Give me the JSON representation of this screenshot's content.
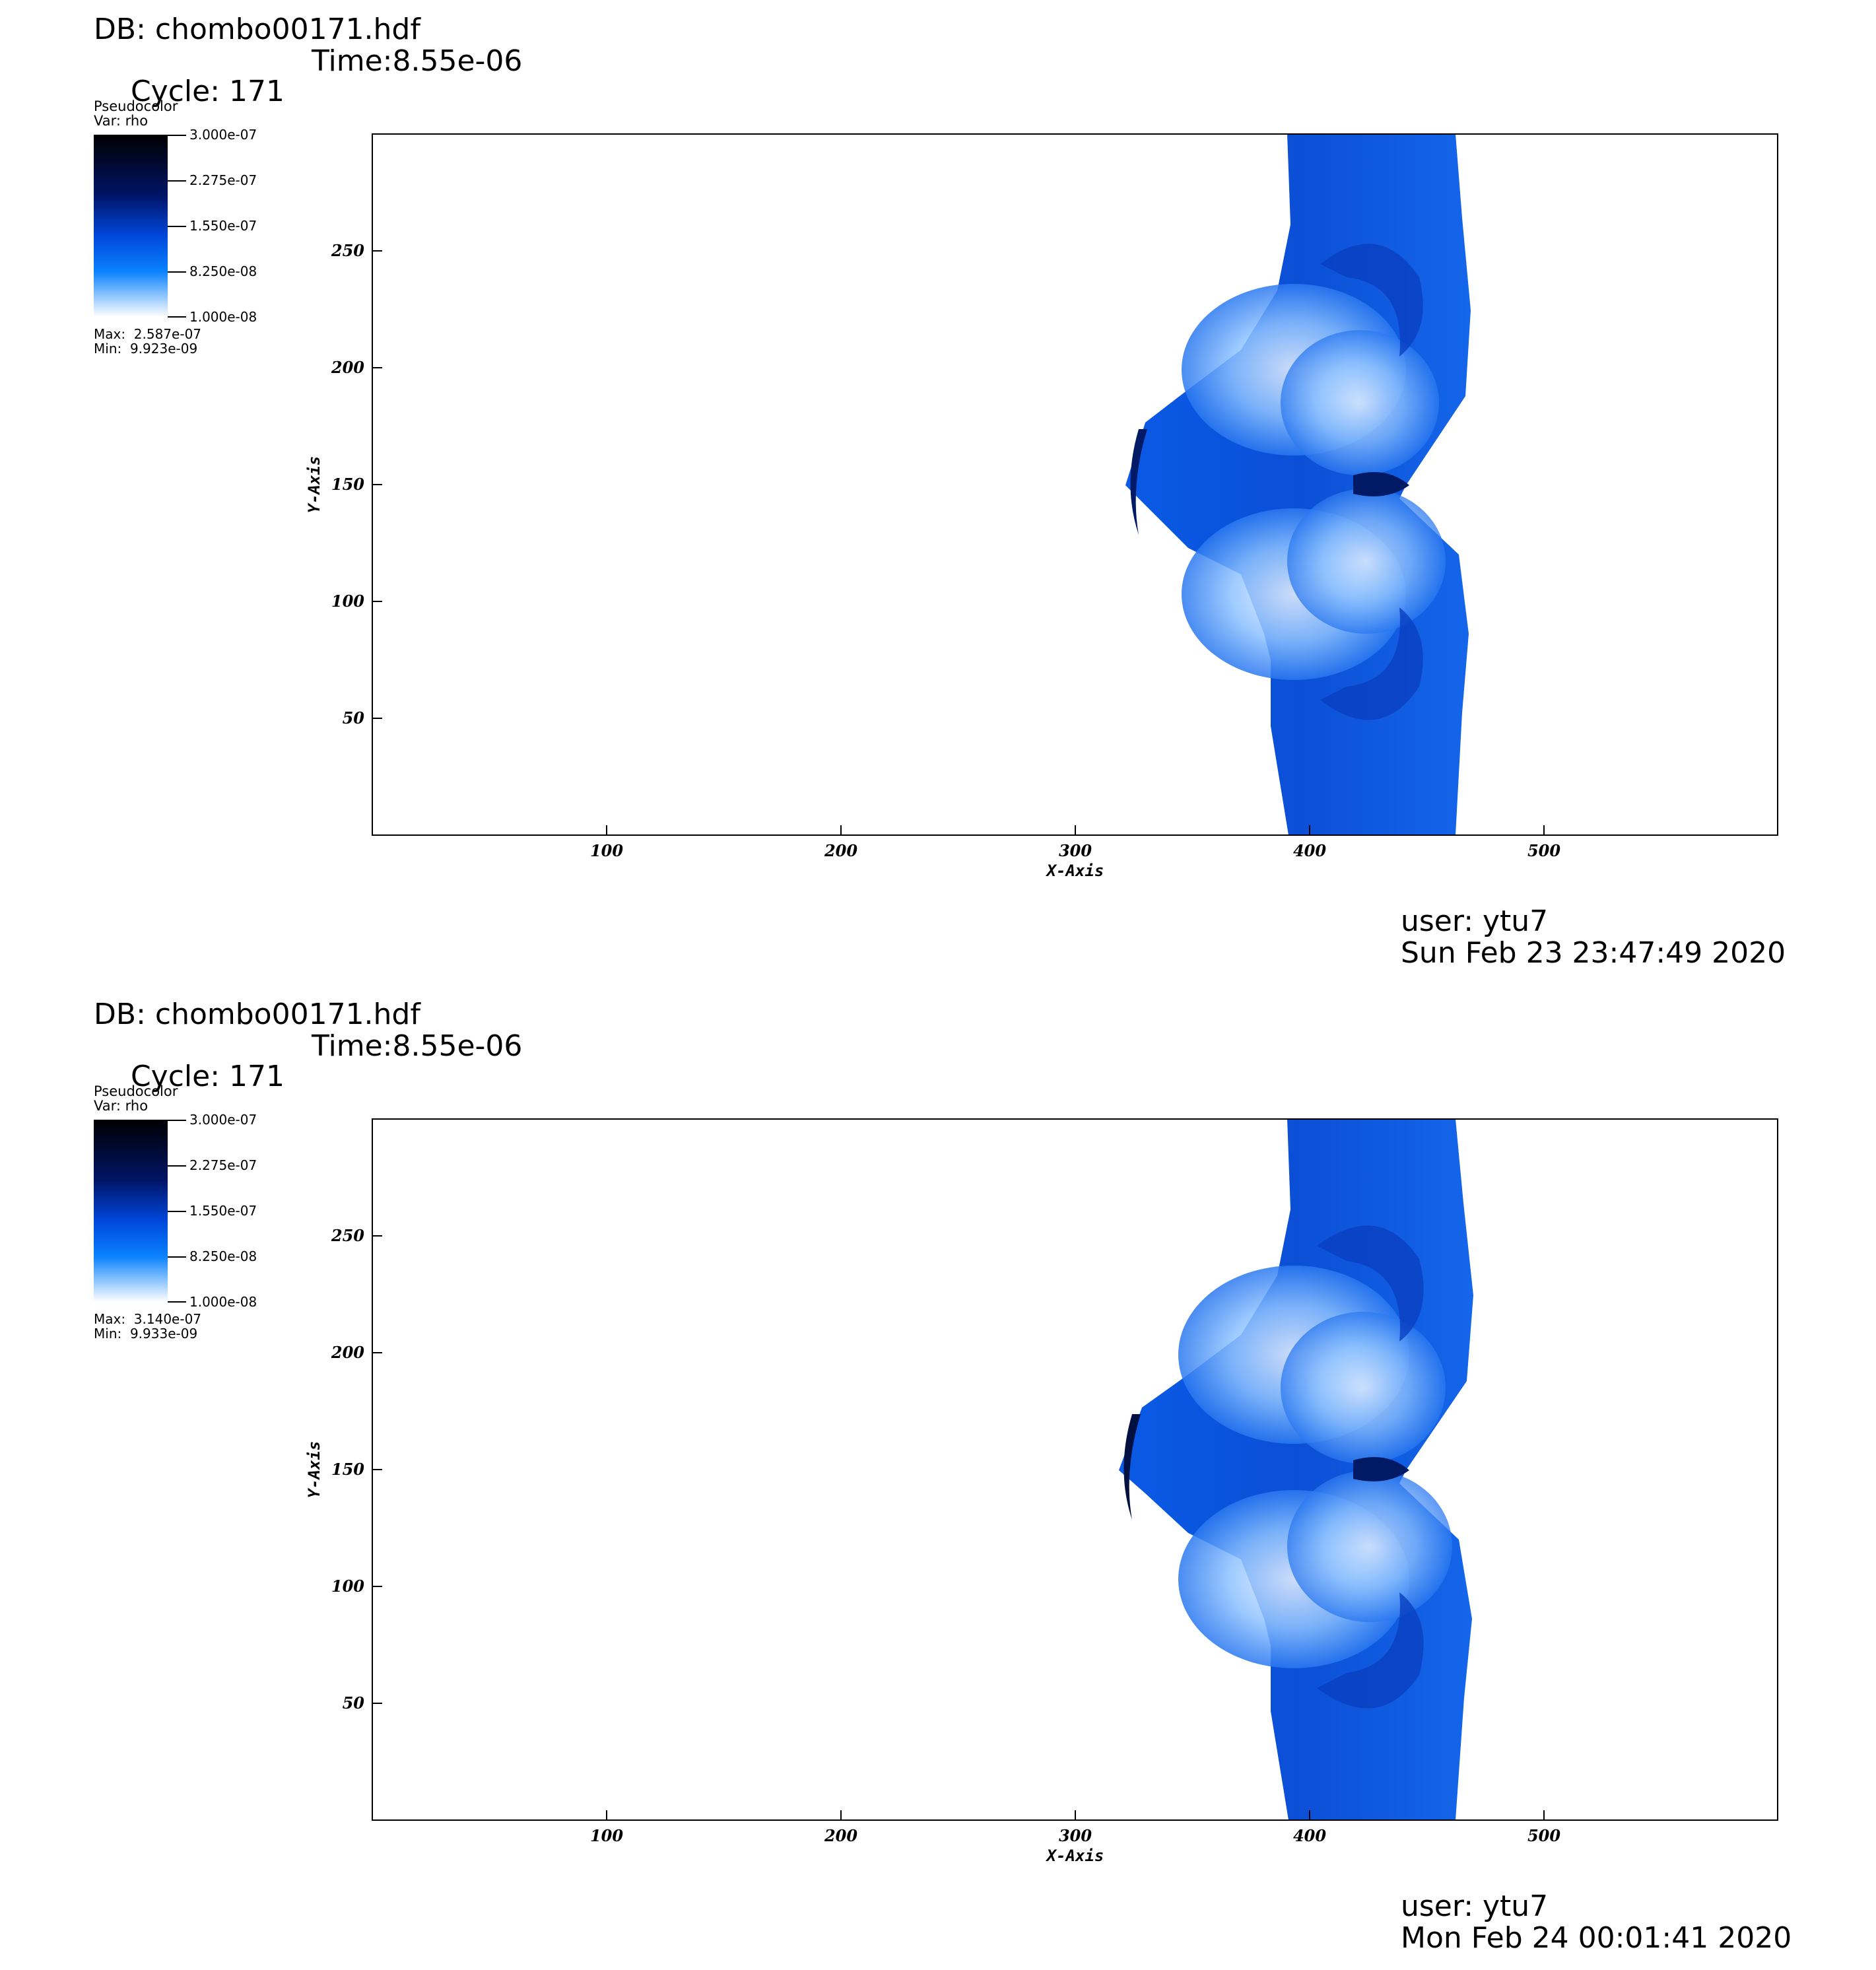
{
  "panels": [
    {
      "db_label": "DB: chombo00171.hdf",
      "cycle_label": "Cycle: 171",
      "time_label": "Time:8.55e-06",
      "legend_name": "Pseudocolor",
      "legend_var": "Var: rho",
      "colorbar_labels": [
        "3.000e-07",
        "2.275e-07",
        "1.550e-07",
        "8.250e-08",
        "1.000e-08"
      ],
      "max_label": "Max:  2.587e-07",
      "min_label": "Min:  9.923e-09",
      "user_label": "user: ytu7",
      "date_label": "Sun Feb 23 23:47:49 2020"
    },
    {
      "db_label": "DB: chombo00171.hdf",
      "cycle_label": "Cycle: 171",
      "time_label": "Time:8.55e-06",
      "legend_name": "Pseudocolor",
      "legend_var": "Var: rho",
      "colorbar_labels": [
        "3.000e-07",
        "2.275e-07",
        "1.550e-07",
        "8.250e-08",
        "1.000e-08"
      ],
      "max_label": "Max:  3.140e-07",
      "min_label": "Min:  9.933e-09",
      "user_label": "user: ytu7",
      "date_label": "Mon Feb 24 00:01:41 2020"
    }
  ],
  "chart_data": [
    {
      "type": "heatmap",
      "variable": "rho",
      "xlabel": "X-Axis",
      "ylabel": "Y-Axis",
      "xlim": [
        0,
        600
      ],
      "ylim": [
        0,
        300
      ],
      "x_ticks": [
        100,
        200,
        300,
        400,
        500
      ],
      "y_ticks": [
        50,
        100,
        150,
        200,
        250
      ],
      "colorbar_range": [
        1e-08,
        3e-07
      ],
      "data_max": 2.587e-07,
      "data_min": 9.923e-09,
      "colors": {
        "high": "#000000",
        "mid": "#0046d8",
        "low": "#ffffff"
      },
      "grid": false,
      "legend": "top-left"
    },
    {
      "type": "heatmap",
      "variable": "rho",
      "xlabel": "X-Axis",
      "ylabel": "Y-Axis",
      "xlim": [
        0,
        600
      ],
      "ylim": [
        0,
        300
      ],
      "x_ticks": [
        100,
        200,
        300,
        400,
        500
      ],
      "y_ticks": [
        50,
        100,
        150,
        200,
        250
      ],
      "colorbar_range": [
        1e-08,
        3e-07
      ],
      "data_max": 3.14e-07,
      "data_min": 9.933e-09,
      "colors": {
        "high": "#000000",
        "mid": "#0046d8",
        "low": "#ffffff"
      },
      "grid": false,
      "legend": "top-left"
    }
  ]
}
